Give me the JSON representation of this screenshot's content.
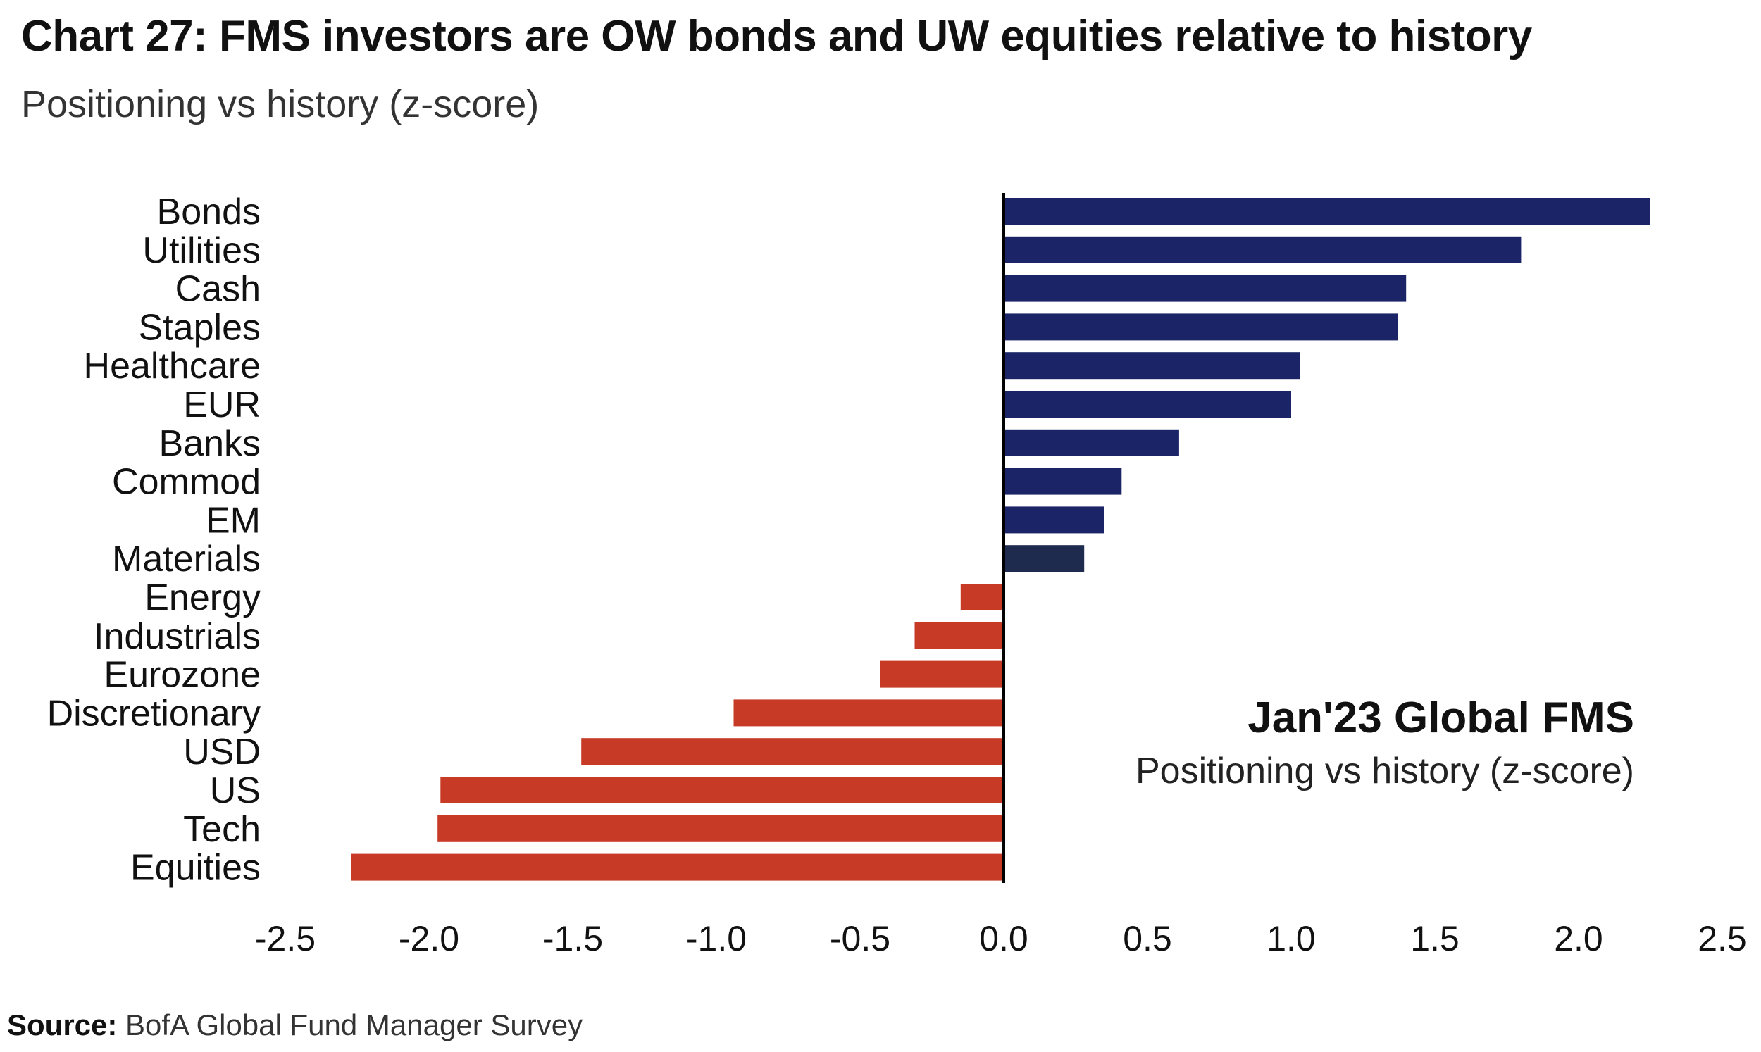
{
  "header": {
    "title": "Chart 27: FMS investors are OW bonds and UW equities relative to history",
    "subtitle": "Positioning vs history (z-score)"
  },
  "footer": {
    "source_label": "Source:",
    "source_text": "BofA Global Fund Manager Survey"
  },
  "chart_data": {
    "type": "bar",
    "orientation": "horizontal",
    "categories": [
      "Bonds",
      "Utilities",
      "Cash",
      "Staples",
      "Healthcare",
      "EUR",
      "Banks",
      "Commod",
      "EM",
      "Materials",
      "Energy",
      "Industrials",
      "Eurozone",
      "Discretionary",
      "USD",
      "US",
      "Tech",
      "Equities"
    ],
    "values": [
      2.25,
      1.8,
      1.4,
      1.37,
      1.03,
      1.0,
      0.61,
      0.41,
      0.35,
      0.28,
      -0.15,
      -0.31,
      -0.43,
      -0.94,
      -1.47,
      -1.96,
      -1.97,
      -2.27
    ],
    "xlim": [
      -2.5,
      2.5
    ],
    "xticks": [
      "-2.5",
      "-2.0",
      "-1.5",
      "-1.0",
      "-0.5",
      "0.0",
      "0.5",
      "1.0",
      "1.5",
      "2.0",
      "2.5"
    ],
    "xtick_values": [
      -2.5,
      -2.0,
      -1.5,
      -1.0,
      -0.5,
      0.0,
      0.5,
      1.0,
      1.5,
      2.0,
      2.5
    ],
    "grid": false,
    "colors": {
      "positive": "#1a2466",
      "positive_dark": "#1e2b4f",
      "negative": "#c63a26",
      "axis": "#000000",
      "text": "#111111"
    },
    "annotation": {
      "title": "Jan'23 Global FMS",
      "subtitle": "Positioning vs history (z-score)"
    }
  }
}
